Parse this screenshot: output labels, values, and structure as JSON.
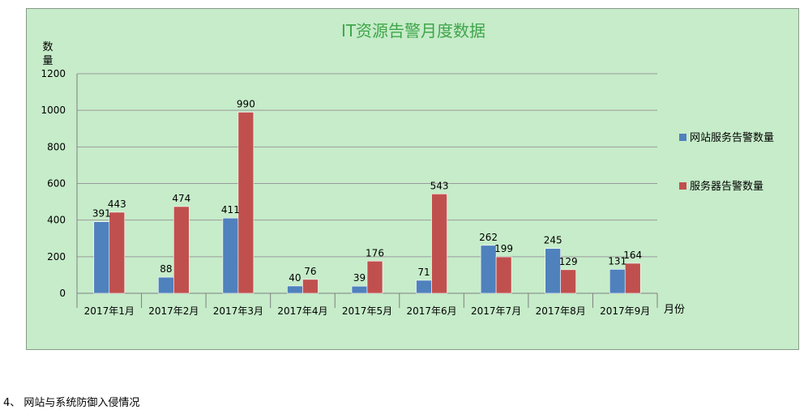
{
  "chart_data": {
    "type": "bar",
    "title": "IT资源告警月度数据",
    "ylabel_lines": [
      "数",
      "量"
    ],
    "xlabel": "月份",
    "categories": [
      "2017年1月",
      "2017年2月",
      "2017年3月",
      "2017年4月",
      "2017年5月",
      "2017年6月",
      "2017年7月",
      "2017年8月",
      "2017年9月"
    ],
    "series": [
      {
        "name": "网站服务告警数量",
        "color": "#4f81bd",
        "values": [
          391,
          88,
          411,
          40,
          39,
          71,
          262,
          245,
          131
        ]
      },
      {
        "name": "服务器告警数量",
        "color": "#c0504d",
        "values": [
          443,
          474,
          990,
          76,
          176,
          543,
          199,
          129,
          164
        ]
      }
    ],
    "ylim": [
      0,
      1200
    ],
    "yticks": [
      0,
      200,
      400,
      600,
      800,
      1000,
      1200
    ],
    "grid": true,
    "legend": "right"
  },
  "section_heading": "4、 网站与系统防御入侵情况"
}
